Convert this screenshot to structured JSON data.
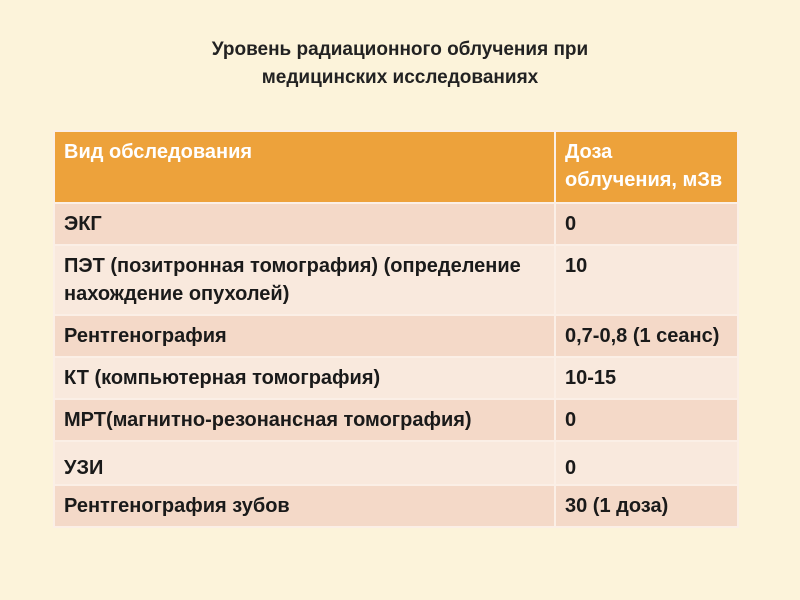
{
  "title": [
    "Уровень радиационного облучения при",
    "медицинских исследованиях"
  ],
  "table": {
    "headers": [
      "Вид обследования",
      "Доза облучения, мЗв"
    ],
    "rows": [
      [
        "ЭКГ",
        "0"
      ],
      [
        "ПЭТ (позитронная томография) (определение нахождение опухолей)",
        "10"
      ],
      [
        "Рентгенография",
        "0,7-0,8 (1 сеанс)"
      ],
      [
        "КТ (компьютерная томография)",
        "10-15"
      ],
      [
        "МРТ(магнитно-резонансная томография)",
        "0"
      ],
      [
        "УЗИ",
        "0"
      ],
      [
        "Рентгенография зубов",
        "30 (1 доза)"
      ]
    ]
  },
  "colors": {
    "header": "#eda23b",
    "row_odd": "#f4d9c8",
    "row_even": "#f9e9dd",
    "background": "#fcf3da"
  }
}
